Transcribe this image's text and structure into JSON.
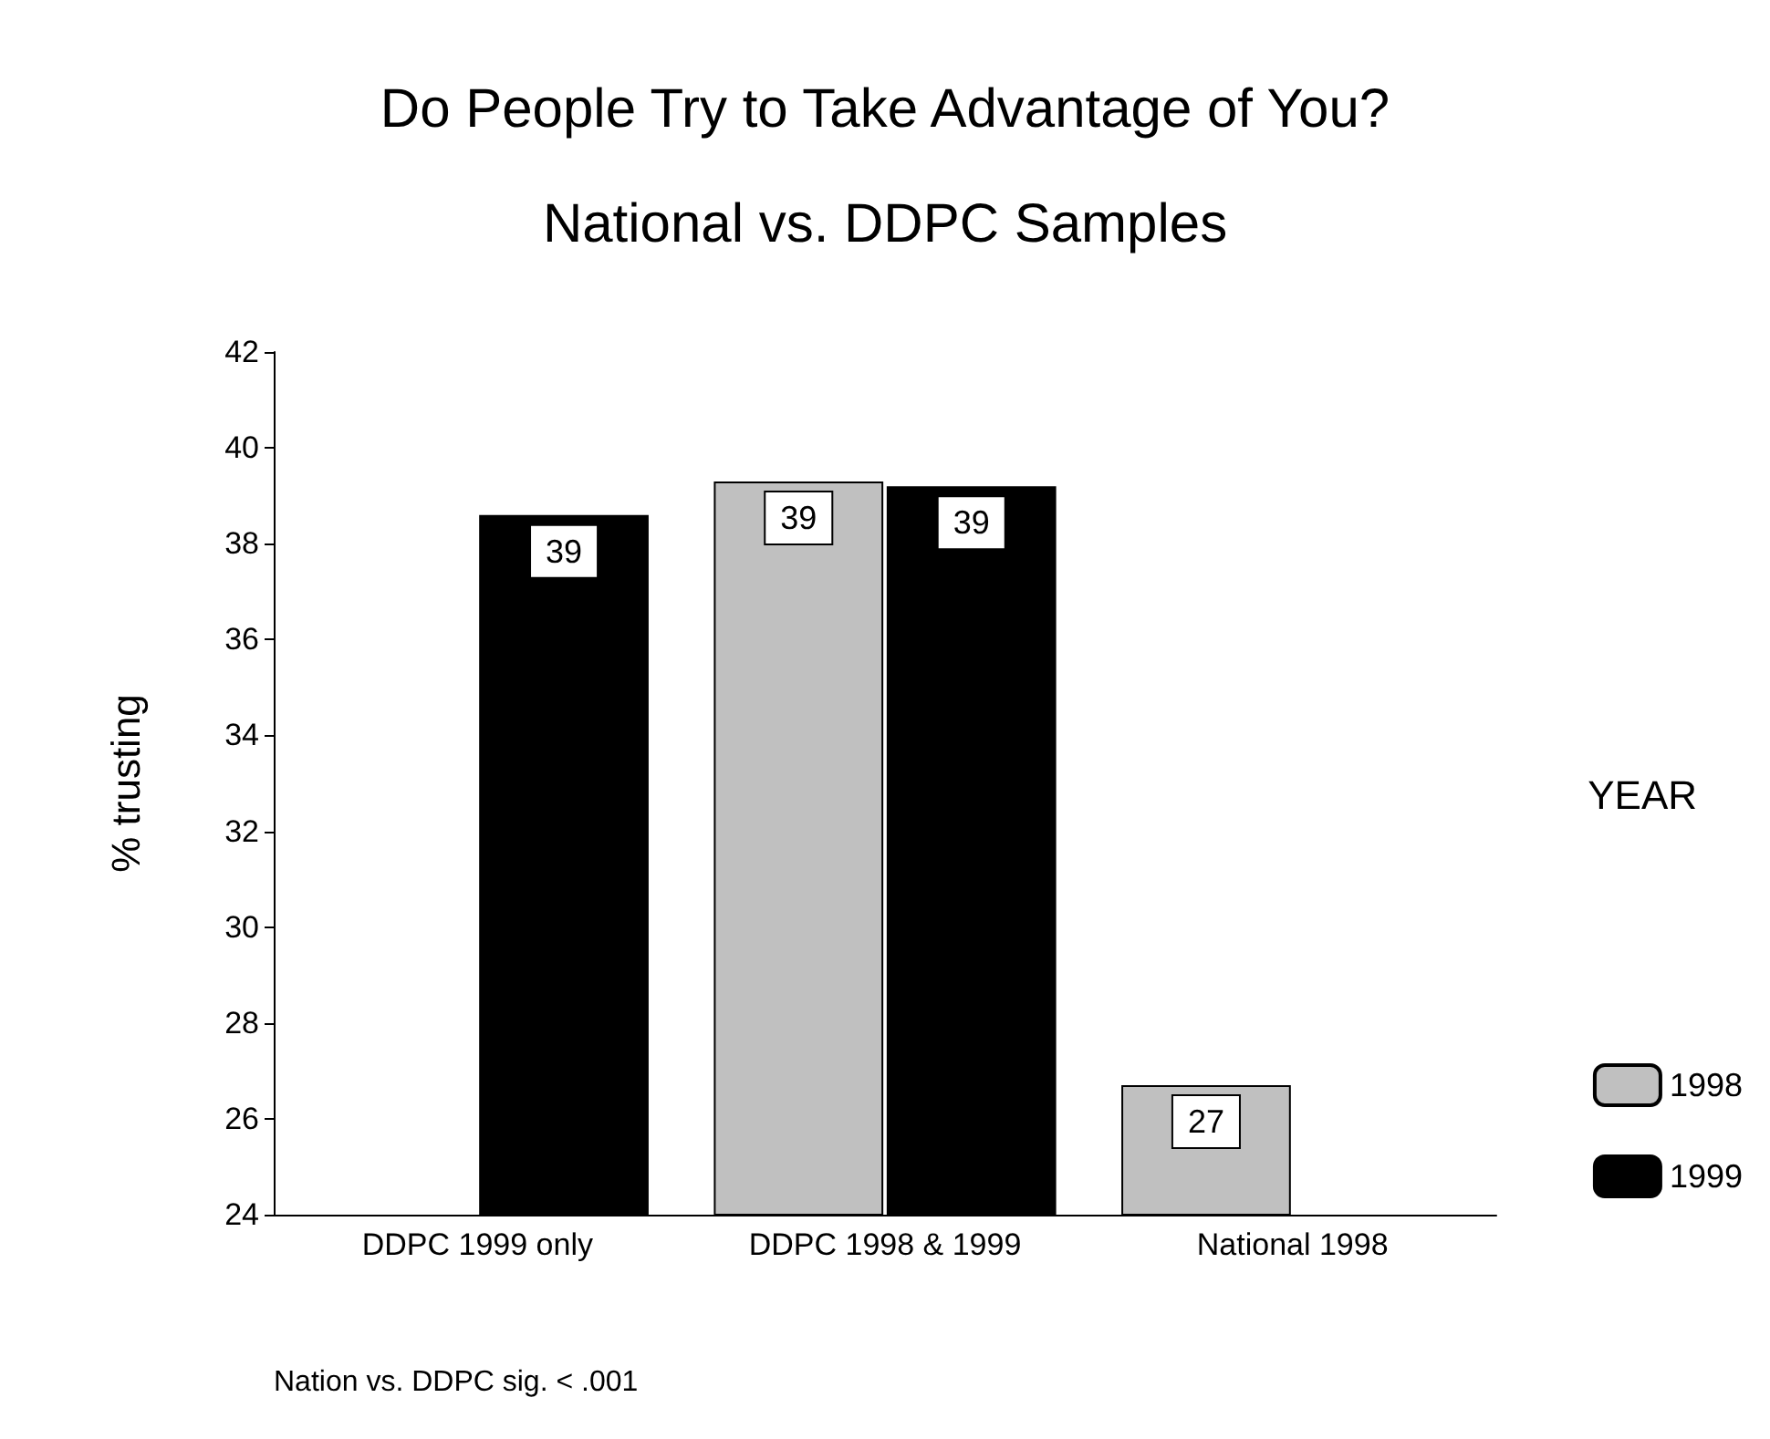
{
  "chart_data": {
    "type": "bar",
    "title": "Do People Try to Take Advantage of You?",
    "subtitle": "National vs. DDPC Samples",
    "ylabel": "% trusting",
    "legend_title": "YEAR",
    "categories": [
      "DDPC 1999 only",
      "DDPC 1998 & 1999",
      "National 1998"
    ],
    "series": [
      {
        "name": "1998",
        "color": "#c0c0c0",
        "values": [
          null,
          39.3,
          26.7
        ],
        "value_labels": [
          null,
          "39",
          "27"
        ]
      },
      {
        "name": "1999",
        "color": "#000000",
        "values": [
          38.6,
          39.2,
          null
        ],
        "value_labels": [
          "39",
          "39",
          null
        ]
      }
    ],
    "ylim": [
      24,
      42
    ],
    "yticks": [
      24,
      26,
      28,
      30,
      32,
      34,
      36,
      38,
      40,
      42
    ],
    "grid": false,
    "legend": "right",
    "annotations": [
      "Nation vs. DDPC sig. < .001"
    ]
  }
}
